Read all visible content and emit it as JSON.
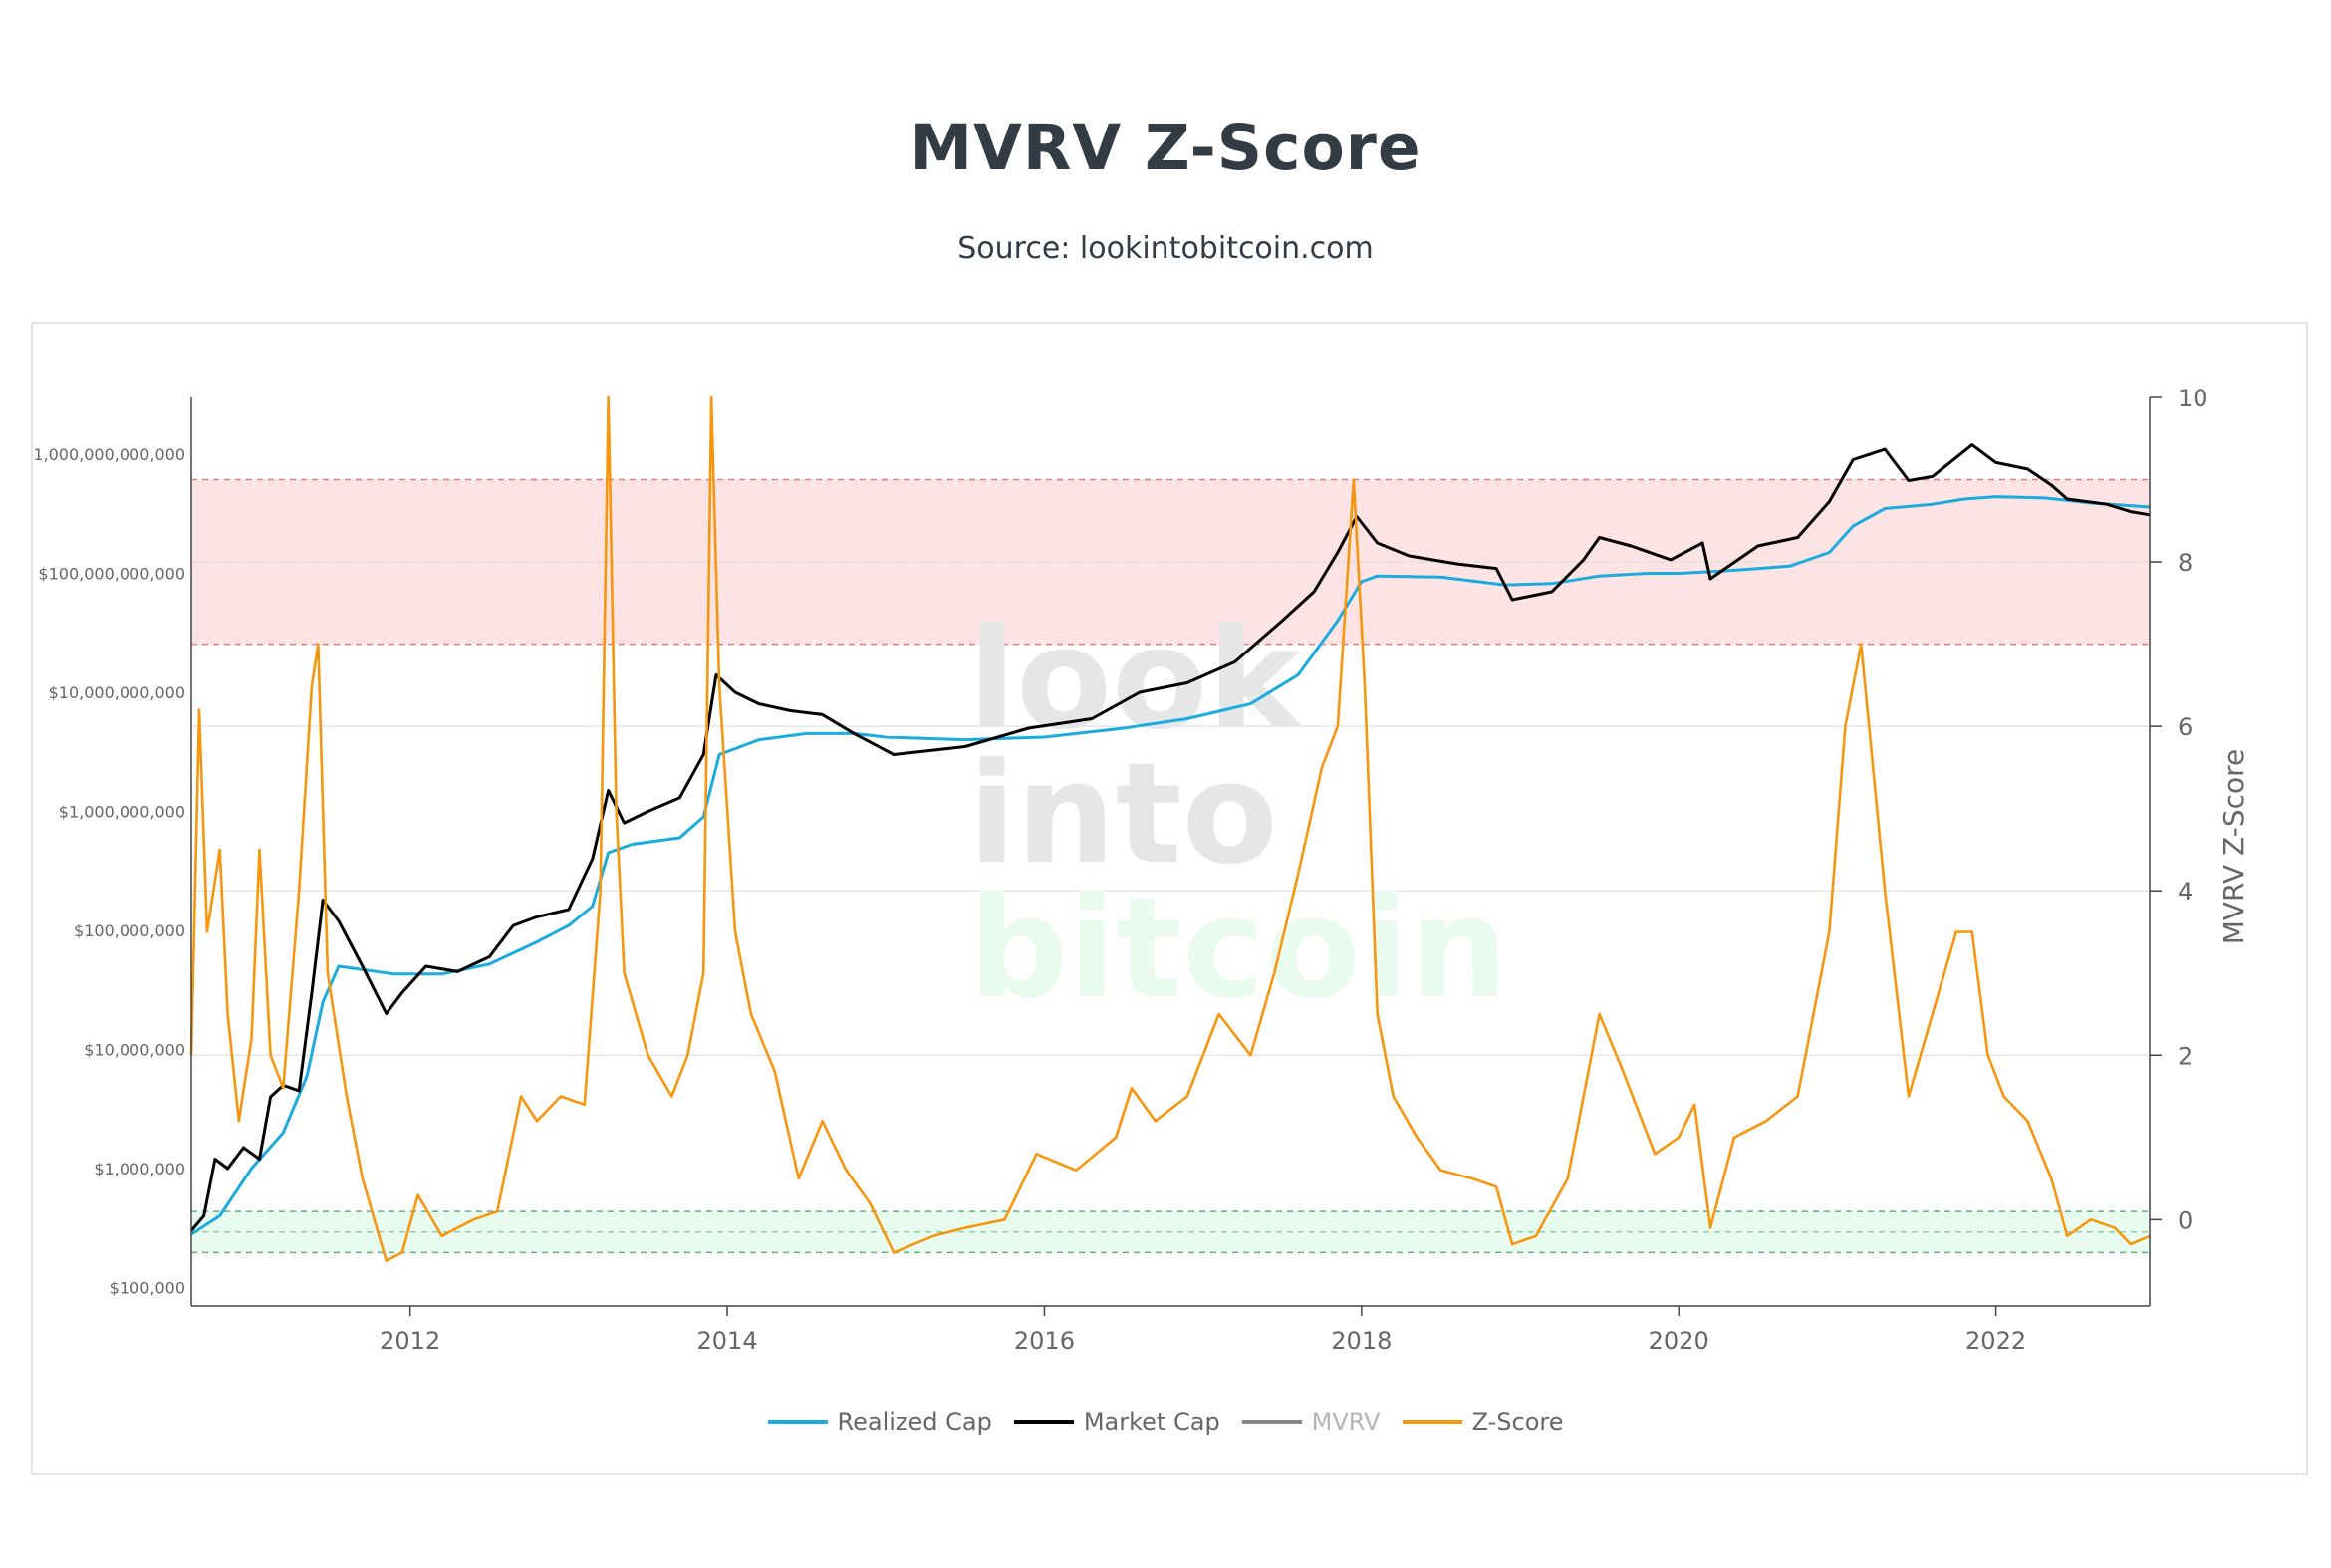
{
  "header": {
    "title": "MVRV Z-Score",
    "subtitle": "Source: lookintobitcoin.com"
  },
  "watermark": {
    "line1": "look",
    "line2": "into",
    "line3": "bitcoin"
  },
  "colors": {
    "realized": "#1aabdf",
    "market": "#000000",
    "mvrv": "#888888",
    "zscore": "#f7950d",
    "red_zone": "#fde3e4",
    "green_zone": "#e8fbef"
  },
  "chart_data": {
    "type": "line",
    "title": "MVRV Z-Score",
    "subtitle": "Source: lookintobitcoin.com",
    "x_ticks": [
      "2012",
      "2014",
      "2016",
      "2018",
      "2020",
      "2022"
    ],
    "x_range": [
      2010.62,
      2022.97
    ],
    "y_left": {
      "scale": "log",
      "range": [
        70000,
        3000000000000
      ],
      "ticks": [
        100000,
        1000000,
        10000000,
        100000000,
        1000000000,
        10000000000,
        100000000000,
        1000000000000
      ],
      "tick_labels": [
        "$100,000",
        "$1,000,000",
        "$10,000,000",
        "$100,000,000",
        "$1,000,000,000",
        "$10,000,000,000",
        "$100,000,000,000",
        "1,000,000,000,000"
      ]
    },
    "y_right": {
      "label": "MVRV Z-Score",
      "range": [
        -1.05,
        10
      ],
      "ticks": [
        0,
        2,
        4,
        6,
        8,
        10
      ],
      "tick_labels": [
        "0",
        "2",
        "4",
        "6",
        "8",
        "10"
      ]
    },
    "zones": {
      "red": {
        "from": 7,
        "to": 9
      },
      "green": {
        "from": -0.4,
        "to": 0.1
      }
    },
    "legend": [
      "Realized Cap",
      "Market Cap",
      "MVRV",
      "Z-Score"
    ],
    "series": [
      {
        "name": "Realized Cap",
        "axis": "left",
        "points": [
          [
            2010.62,
            280000
          ],
          [
            2010.8,
            400000
          ],
          [
            2011.0,
            1000000
          ],
          [
            2011.2,
            2000000
          ],
          [
            2011.35,
            6000000
          ],
          [
            2011.45,
            25000000
          ],
          [
            2011.55,
            50000000
          ],
          [
            2011.9,
            43000000
          ],
          [
            2012.2,
            43000000
          ],
          [
            2012.5,
            52000000
          ],
          [
            2012.8,
            80000000
          ],
          [
            2013.0,
            110000000
          ],
          [
            2013.15,
            160000000
          ],
          [
            2013.25,
            450000000
          ],
          [
            2013.4,
            530000000
          ],
          [
            2013.7,
            600000000
          ],
          [
            2013.85,
            900000000
          ],
          [
            2013.95,
            3000000000
          ],
          [
            2014.2,
            4000000000
          ],
          [
            2014.5,
            4500000000
          ],
          [
            2014.8,
            4500000000
          ],
          [
            2015.0,
            4200000000
          ],
          [
            2015.5,
            4000000000
          ],
          [
            2016.0,
            4200000000
          ],
          [
            2016.5,
            5000000000
          ],
          [
            2016.9,
            6000000000
          ],
          [
            2017.3,
            8000000000
          ],
          [
            2017.6,
            14000000000
          ],
          [
            2017.85,
            40000000000
          ],
          [
            2018.0,
            85000000000
          ],
          [
            2018.1,
            95000000000
          ],
          [
            2018.5,
            93000000000
          ],
          [
            2018.9,
            80000000000
          ],
          [
            2019.2,
            82000000000
          ],
          [
            2019.5,
            95000000000
          ],
          [
            2019.8,
            100000000000
          ],
          [
            2020.0,
            100000000000
          ],
          [
            2020.3,
            105000000000
          ],
          [
            2020.7,
            115000000000
          ],
          [
            2020.95,
            150000000000
          ],
          [
            2021.1,
            250000000000
          ],
          [
            2021.3,
            350000000000
          ],
          [
            2021.6,
            380000000000
          ],
          [
            2021.8,
            420000000000
          ],
          [
            2022.0,
            440000000000
          ],
          [
            2022.3,
            430000000000
          ],
          [
            2022.6,
            390000000000
          ],
          [
            2022.97,
            360000000000
          ]
        ]
      },
      {
        "name": "Market Cap",
        "axis": "left",
        "points": [
          [
            2010.62,
            300000
          ],
          [
            2010.7,
            400000
          ],
          [
            2010.77,
            1200000
          ],
          [
            2010.85,
            1000000
          ],
          [
            2010.95,
            1500000
          ],
          [
            2011.05,
            1200000
          ],
          [
            2011.12,
            4000000
          ],
          [
            2011.2,
            5000000
          ],
          [
            2011.3,
            4500000
          ],
          [
            2011.38,
            30000000
          ],
          [
            2011.45,
            180000000
          ],
          [
            2011.55,
            120000000
          ],
          [
            2011.7,
            50000000
          ],
          [
            2011.85,
            20000000
          ],
          [
            2011.95,
            30000000
          ],
          [
            2012.1,
            50000000
          ],
          [
            2012.3,
            45000000
          ],
          [
            2012.5,
            60000000
          ],
          [
            2012.65,
            110000000
          ],
          [
            2012.8,
            130000000
          ],
          [
            2013.0,
            150000000
          ],
          [
            2013.15,
            400000000
          ],
          [
            2013.25,
            1500000000
          ],
          [
            2013.35,
            800000000
          ],
          [
            2013.5,
            1000000000
          ],
          [
            2013.7,
            1300000000
          ],
          [
            2013.85,
            3000000000
          ],
          [
            2013.93,
            14000000000
          ],
          [
            2014.05,
            10000000000
          ],
          [
            2014.2,
            8000000000
          ],
          [
            2014.4,
            7000000000
          ],
          [
            2014.6,
            6500000000
          ],
          [
            2014.8,
            4500000000
          ],
          [
            2015.05,
            3000000000
          ],
          [
            2015.5,
            3500000000
          ],
          [
            2015.9,
            5000000000
          ],
          [
            2016.3,
            6000000000
          ],
          [
            2016.6,
            10000000000
          ],
          [
            2016.9,
            12000000000
          ],
          [
            2017.2,
            18000000000
          ],
          [
            2017.5,
            40000000000
          ],
          [
            2017.7,
            70000000000
          ],
          [
            2017.85,
            150000000000
          ],
          [
            2017.97,
            300000000000
          ],
          [
            2018.1,
            180000000000
          ],
          [
            2018.3,
            140000000000
          ],
          [
            2018.6,
            120000000000
          ],
          [
            2018.85,
            110000000000
          ],
          [
            2018.95,
            60000000000
          ],
          [
            2019.2,
            70000000000
          ],
          [
            2019.4,
            130000000000
          ],
          [
            2019.5,
            200000000000
          ],
          [
            2019.7,
            170000000000
          ],
          [
            2019.95,
            130000000000
          ],
          [
            2020.15,
            180000000000
          ],
          [
            2020.2,
            90000000000
          ],
          [
            2020.5,
            170000000000
          ],
          [
            2020.75,
            200000000000
          ],
          [
            2020.95,
            400000000000
          ],
          [
            2021.1,
            900000000000
          ],
          [
            2021.3,
            1100000000000
          ],
          [
            2021.45,
            600000000000
          ],
          [
            2021.6,
            650000000000
          ],
          [
            2021.85,
            1200000000000
          ],
          [
            2022.0,
            850000000000
          ],
          [
            2022.2,
            750000000000
          ],
          [
            2022.35,
            550000000000
          ],
          [
            2022.45,
            420000000000
          ],
          [
            2022.7,
            380000000000
          ],
          [
            2022.85,
            330000000000
          ],
          [
            2022.97,
            310000000000
          ]
        ]
      },
      {
        "name": "Z-Score",
        "axis": "right",
        "points": [
          [
            2010.62,
            2.0
          ],
          [
            2010.67,
            6.2
          ],
          [
            2010.72,
            3.5
          ],
          [
            2010.8,
            4.5
          ],
          [
            2010.85,
            2.5
          ],
          [
            2010.92,
            1.2
          ],
          [
            2011.0,
            2.2
          ],
          [
            2011.05,
            4.5
          ],
          [
            2011.12,
            2.0
          ],
          [
            2011.2,
            1.6
          ],
          [
            2011.3,
            4.0
          ],
          [
            2011.38,
            6.5
          ],
          [
            2011.42,
            7.0
          ],
          [
            2011.48,
            3.0
          ],
          [
            2011.6,
            1.5
          ],
          [
            2011.7,
            0.5
          ],
          [
            2011.85,
            -0.5
          ],
          [
            2011.95,
            -0.4
          ],
          [
            2012.05,
            0.3
          ],
          [
            2012.2,
            -0.2
          ],
          [
            2012.4,
            0.0
          ],
          [
            2012.55,
            0.1
          ],
          [
            2012.7,
            1.5
          ],
          [
            2012.8,
            1.2
          ],
          [
            2012.95,
            1.5
          ],
          [
            2013.1,
            1.4
          ],
          [
            2013.2,
            4.0
          ],
          [
            2013.25,
            10.0
          ],
          [
            2013.3,
            5.0
          ],
          [
            2013.35,
            3.0
          ],
          [
            2013.5,
            2.0
          ],
          [
            2013.65,
            1.5
          ],
          [
            2013.75,
            2.0
          ],
          [
            2013.85,
            3.0
          ],
          [
            2013.9,
            10.0
          ],
          [
            2013.95,
            6.5
          ],
          [
            2014.05,
            3.5
          ],
          [
            2014.15,
            2.5
          ],
          [
            2014.3,
            1.8
          ],
          [
            2014.45,
            0.5
          ],
          [
            2014.6,
            1.2
          ],
          [
            2014.75,
            0.6
          ],
          [
            2014.9,
            0.2
          ],
          [
            2015.05,
            -0.4
          ],
          [
            2015.3,
            -0.2
          ],
          [
            2015.5,
            -0.1
          ],
          [
            2015.75,
            0.0
          ],
          [
            2015.95,
            0.8
          ],
          [
            2016.2,
            0.6
          ],
          [
            2016.45,
            1.0
          ],
          [
            2016.55,
            1.6
          ],
          [
            2016.7,
            1.2
          ],
          [
            2016.9,
            1.5
          ],
          [
            2017.1,
            2.5
          ],
          [
            2017.3,
            2.0
          ],
          [
            2017.45,
            3.0
          ],
          [
            2017.6,
            4.2
          ],
          [
            2017.75,
            5.5
          ],
          [
            2017.85,
            6.0
          ],
          [
            2017.95,
            9.0
          ],
          [
            2018.02,
            6.5
          ],
          [
            2018.1,
            2.5
          ],
          [
            2018.2,
            1.5
          ],
          [
            2018.35,
            1.0
          ],
          [
            2018.5,
            0.6
          ],
          [
            2018.7,
            0.5
          ],
          [
            2018.85,
            0.4
          ],
          [
            2018.95,
            -0.3
          ],
          [
            2019.1,
            -0.2
          ],
          [
            2019.3,
            0.5
          ],
          [
            2019.5,
            2.5
          ],
          [
            2019.65,
            1.8
          ],
          [
            2019.85,
            0.8
          ],
          [
            2020.0,
            1.0
          ],
          [
            2020.1,
            1.4
          ],
          [
            2020.2,
            -0.1
          ],
          [
            2020.35,
            1.0
          ],
          [
            2020.55,
            1.2
          ],
          [
            2020.75,
            1.5
          ],
          [
            2020.95,
            3.5
          ],
          [
            2021.05,
            6.0
          ],
          [
            2021.15,
            7.0
          ],
          [
            2021.3,
            4.0
          ],
          [
            2021.45,
            1.5
          ],
          [
            2021.6,
            2.5
          ],
          [
            2021.75,
            3.5
          ],
          [
            2021.85,
            3.5
          ],
          [
            2021.95,
            2.0
          ],
          [
            2022.05,
            1.5
          ],
          [
            2022.2,
            1.2
          ],
          [
            2022.35,
            0.5
          ],
          [
            2022.45,
            -0.2
          ],
          [
            2022.6,
            0.0
          ],
          [
            2022.75,
            -0.1
          ],
          [
            2022.85,
            -0.3
          ],
          [
            2022.97,
            -0.2
          ]
        ]
      }
    ]
  }
}
